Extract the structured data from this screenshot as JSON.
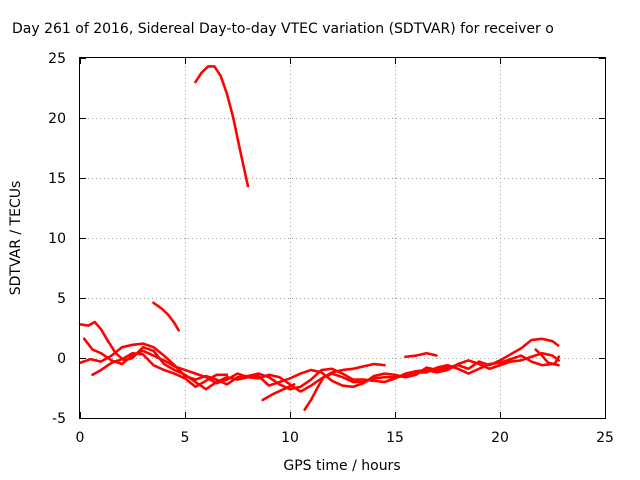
{
  "chart_data": {
    "type": "scatter",
    "title": "Day 261 of 2016, Sidereal Day-to-day VTEC variation (SDTVAR) for receiver o",
    "xlabel": "GPS time / hours",
    "ylabel": "SDTVAR / TECUs",
    "xlim": [
      0,
      25
    ],
    "ylim": [
      -5,
      25
    ],
    "xticks": [
      0,
      5,
      10,
      15,
      20,
      25
    ],
    "yticks": [
      -5,
      0,
      5,
      10,
      15,
      20,
      25
    ],
    "grid": true,
    "color": "#ff0000",
    "series": [
      {
        "values": [
          [
            5.5,
            23.0
          ],
          [
            5.8,
            23.8
          ],
          [
            6.1,
            24.3
          ],
          [
            6.4,
            24.3
          ],
          [
            6.7,
            23.5
          ],
          [
            7.0,
            22.0
          ],
          [
            7.3,
            20.0
          ],
          [
            7.6,
            17.5
          ],
          [
            8.0,
            14.3
          ]
        ]
      },
      {
        "values": [
          [
            3.5,
            4.6
          ],
          [
            3.9,
            4.1
          ],
          [
            4.2,
            3.6
          ],
          [
            4.5,
            2.9
          ],
          [
            4.7,
            2.3
          ]
        ]
      },
      {
        "values": [
          [
            0.0,
            2.8
          ],
          [
            0.4,
            2.7
          ],
          [
            0.7,
            3.0
          ],
          [
            1.0,
            2.4
          ],
          [
            1.3,
            1.5
          ],
          [
            1.7,
            0.4
          ],
          [
            2.1,
            -0.2
          ],
          [
            2.5,
            0.0
          ],
          [
            3.0,
            0.9
          ],
          [
            3.5,
            0.6
          ],
          [
            4.0,
            -0.5
          ],
          [
            4.5,
            -1.0
          ],
          [
            5.0,
            -1.4
          ],
          [
            5.5,
            -2.0
          ],
          [
            6.0,
            -2.6
          ],
          [
            6.5,
            -2.0
          ],
          [
            7.0,
            -1.6
          ],
          [
            7.5,
            -1.8
          ],
          [
            8.0,
            -1.6
          ],
          [
            8.5,
            -1.5
          ],
          [
            9.0,
            -2.3
          ],
          [
            9.5,
            -2.0
          ],
          [
            10.0,
            -1.7
          ],
          [
            10.5,
            -1.3
          ],
          [
            11.0,
            -1.0
          ],
          [
            11.5,
            -1.2
          ],
          [
            12.0,
            -1.9
          ],
          [
            12.5,
            -2.3
          ],
          [
            13.0,
            -2.4
          ],
          [
            13.5,
            -2.1
          ],
          [
            14.0,
            -1.5
          ],
          [
            14.5,
            -1.3
          ],
          [
            15.0,
            -1.4
          ],
          [
            15.5,
            -1.6
          ],
          [
            16.0,
            -1.4
          ],
          [
            16.5,
            -0.8
          ],
          [
            17.0,
            -1.0
          ],
          [
            17.5,
            -0.8
          ],
          [
            18.0,
            -0.6
          ],
          [
            18.5,
            -0.9
          ],
          [
            19.0,
            -0.3
          ],
          [
            19.5,
            -0.6
          ],
          [
            20.0,
            -0.2
          ],
          [
            20.5,
            0.3
          ],
          [
            21.0,
            0.8
          ],
          [
            21.5,
            1.5
          ],
          [
            22.0,
            1.6
          ],
          [
            22.5,
            1.4
          ],
          [
            22.8,
            1.0
          ]
        ]
      },
      {
        "values": [
          [
            0.0,
            -0.4
          ],
          [
            0.5,
            -0.1
          ],
          [
            1.0,
            -0.3
          ],
          [
            1.5,
            0.2
          ],
          [
            2.0,
            0.9
          ],
          [
            2.5,
            1.1
          ],
          [
            3.0,
            1.2
          ],
          [
            3.5,
            0.9
          ],
          [
            4.0,
            0.2
          ],
          [
            4.5,
            -0.6
          ],
          [
            5.0,
            -1.5
          ],
          [
            5.5,
            -1.8
          ],
          [
            6.0,
            -1.5
          ],
          [
            6.5,
            -1.8
          ],
          [
            7.0,
            -2.2
          ],
          [
            7.5,
            -1.6
          ],
          [
            8.0,
            -1.5
          ],
          [
            8.5,
            -1.3
          ],
          [
            9.0,
            -1.6
          ],
          [
            9.5,
            -2.2
          ],
          [
            10.0,
            -2.6
          ],
          [
            10.5,
            -2.4
          ],
          [
            11.0,
            -1.8
          ],
          [
            11.5,
            -1.0
          ],
          [
            12.0,
            -0.9
          ],
          [
            12.5,
            -1.3
          ],
          [
            13.0,
            -1.8
          ],
          [
            13.5,
            -1.8
          ],
          [
            14.0,
            -1.9
          ],
          [
            14.5,
            -2.0
          ],
          [
            15.0,
            -1.7
          ],
          [
            15.5,
            -1.3
          ],
          [
            16.0,
            -1.1
          ],
          [
            16.5,
            -1.0
          ],
          [
            17.0,
            -1.2
          ],
          [
            17.5,
            -1.0
          ],
          [
            18.0,
            -0.5
          ],
          [
            18.5,
            -0.2
          ],
          [
            19.0,
            -0.5
          ],
          [
            19.5,
            -0.9
          ],
          [
            20.0,
            -0.6
          ],
          [
            20.5,
            -0.3
          ],
          [
            21.0,
            -0.2
          ],
          [
            21.5,
            0.1
          ],
          [
            22.0,
            0.4
          ],
          [
            22.5,
            0.2
          ],
          [
            22.8,
            -0.2
          ]
        ]
      },
      {
        "values": [
          [
            0.2,
            1.6
          ],
          [
            0.6,
            0.7
          ],
          [
            1.0,
            0.4
          ],
          [
            1.5,
            -0.2
          ],
          [
            2.0,
            -0.5
          ],
          [
            2.5,
            0.2
          ],
          [
            3.0,
            0.6
          ],
          [
            3.5,
            0.2
          ],
          [
            4.0,
            -0.2
          ],
          [
            4.5,
            -0.7
          ],
          [
            5.0,
            -1.0
          ],
          [
            5.5,
            -1.3
          ],
          [
            6.0,
            -1.6
          ],
          [
            6.5,
            -2.1
          ],
          [
            7.0,
            -1.8
          ],
          [
            7.5,
            -1.3
          ],
          [
            8.0,
            -1.6
          ],
          [
            8.5,
            -1.7
          ],
          [
            9.0,
            -1.4
          ],
          [
            9.5,
            -1.6
          ],
          [
            10.0,
            -2.2
          ],
          [
            10.5,
            -2.8
          ],
          [
            11.0,
            -2.3
          ],
          [
            11.5,
            -1.7
          ],
          [
            12.0,
            -1.3
          ],
          [
            12.5,
            -1.6
          ],
          [
            13.0,
            -2.0
          ],
          [
            13.5,
            -2.0
          ],
          [
            14.0,
            -1.7
          ],
          [
            14.5,
            -1.6
          ],
          [
            15.0,
            -1.6
          ],
          [
            15.5,
            -1.5
          ],
          [
            16.0,
            -1.2
          ],
          [
            16.5,
            -1.2
          ],
          [
            17.0,
            -0.8
          ],
          [
            17.5,
            -0.6
          ],
          [
            18.0,
            -0.9
          ],
          [
            18.5,
            -1.3
          ],
          [
            19.0,
            -0.9
          ],
          [
            19.5,
            -0.5
          ],
          [
            20.0,
            -0.4
          ],
          [
            20.5,
            -0.1
          ],
          [
            21.0,
            0.2
          ],
          [
            21.5,
            -0.3
          ],
          [
            22.0,
            -0.6
          ],
          [
            22.5,
            -0.5
          ],
          [
            22.8,
            -0.6
          ]
        ]
      },
      {
        "values": [
          [
            0.6,
            -1.4
          ],
          [
            1.0,
            -1.0
          ],
          [
            1.5,
            -0.4
          ],
          [
            2.0,
            -0.1
          ],
          [
            2.5,
            0.4
          ],
          [
            3.0,
            0.3
          ],
          [
            3.5,
            -0.6
          ],
          [
            4.0,
            -1.0
          ],
          [
            4.5,
            -1.3
          ],
          [
            5.0,
            -1.7
          ],
          [
            5.5,
            -2.4
          ],
          [
            6.0,
            -1.9
          ],
          [
            6.5,
            -1.4
          ],
          [
            7.0,
            -1.4
          ]
        ]
      },
      {
        "values": [
          [
            8.7,
            -3.5
          ],
          [
            9.2,
            -3.0
          ],
          [
            9.7,
            -2.6
          ],
          [
            10.2,
            -2.2
          ]
        ]
      },
      {
        "values": [
          [
            10.7,
            -4.3
          ],
          [
            11.0,
            -3.5
          ],
          [
            11.3,
            -2.5
          ],
          [
            11.6,
            -1.6
          ],
          [
            12.0,
            -1.2
          ],
          [
            12.5,
            -1.0
          ],
          [
            13.0,
            -0.9
          ],
          [
            13.5,
            -0.7
          ],
          [
            14.0,
            -0.5
          ],
          [
            14.5,
            -0.6
          ]
        ]
      },
      {
        "values": [
          [
            15.5,
            0.1
          ],
          [
            16.0,
            0.2
          ],
          [
            16.5,
            0.4
          ],
          [
            17.0,
            0.2
          ]
        ]
      },
      {
        "values": [
          [
            21.7,
            0.7
          ],
          [
            22.0,
            0.2
          ],
          [
            22.3,
            -0.4
          ],
          [
            22.6,
            -0.5
          ],
          [
            22.8,
            0.1
          ]
        ]
      }
    ]
  }
}
